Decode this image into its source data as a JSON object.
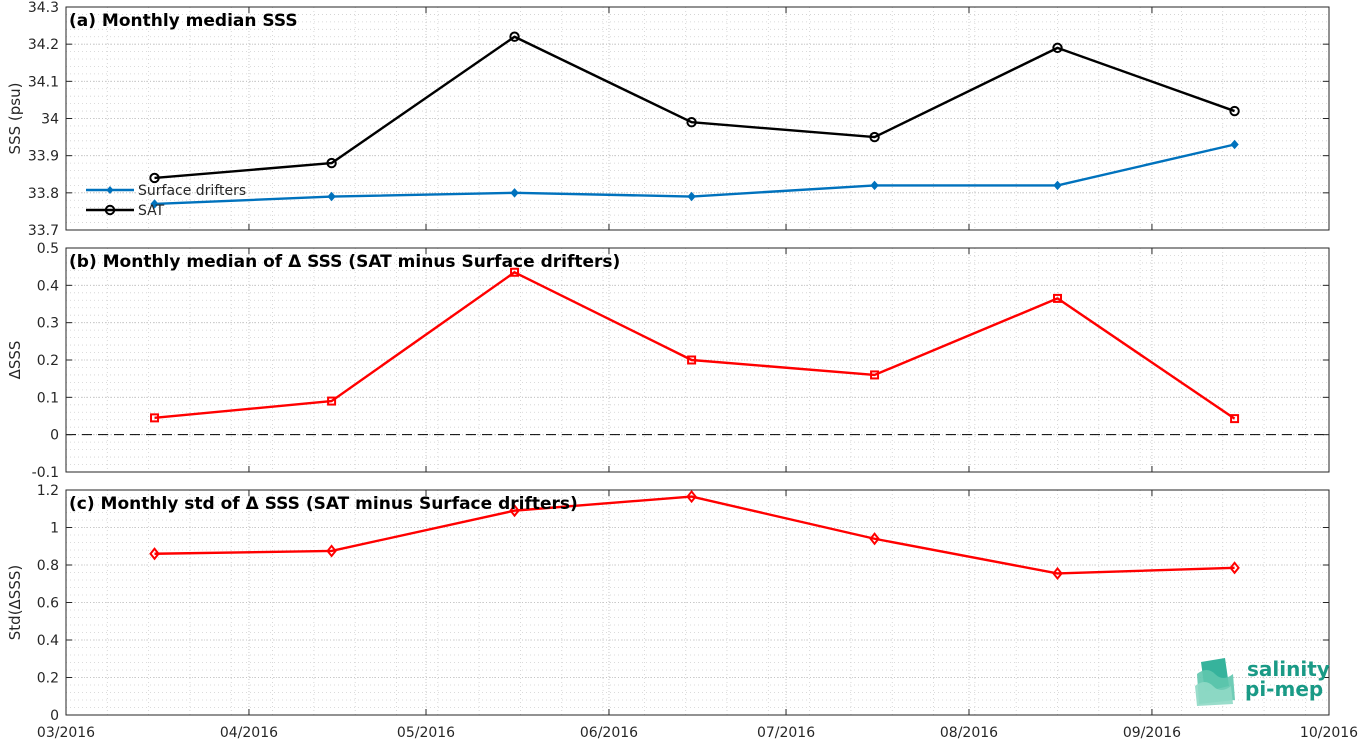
{
  "logo": {
    "line1": "salinity",
    "line2": "pi-mep",
    "color": "#1a9a86"
  },
  "x_axis": {
    "ticks": [
      "03/2016",
      "04/2016",
      "05/2016",
      "06/2016",
      "07/2016",
      "08/2016",
      "09/2016",
      "10/2016"
    ]
  },
  "chart_data": [
    {
      "type": "line",
      "title": "(a) Monthly median SSS",
      "xlabel": "",
      "ylabel": "SSS (psu)",
      "ylim": [
        33.7,
        34.3
      ],
      "yticks": [
        "33.7",
        "33.8",
        "33.9",
        "34",
        "34.1",
        "34.2",
        "34.3"
      ],
      "ytick_values": [
        33.7,
        33.8,
        33.9,
        34.0,
        34.1,
        34.2,
        34.3
      ],
      "xlim": [
        "2016-03-01",
        "2016-10-01"
      ],
      "x": [
        "2016-03-16",
        "2016-04-15",
        "2016-05-16",
        "2016-06-15",
        "2016-07-16",
        "2016-08-16",
        "2016-09-15"
      ],
      "grid": true,
      "legend": "left",
      "series": [
        {
          "name": "Surface drifters",
          "values": [
            33.77,
            33.79,
            33.8,
            33.79,
            33.82,
            33.82,
            33.93
          ],
          "color": "#0072bd",
          "marker": "diamond-filled"
        },
        {
          "name": "SAT",
          "values": [
            33.84,
            33.88,
            34.22,
            33.99,
            33.95,
            34.19,
            34.02
          ],
          "color": "#000000",
          "marker": "circle"
        }
      ]
    },
    {
      "type": "line",
      "title": "(b) Monthly median of Δ SSS (SAT minus Surface drifters)",
      "xlabel": "",
      "ylabel": "ΔSSS",
      "ylim": [
        -0.1,
        0.5
      ],
      "yticks": [
        "-0.1",
        "0",
        "0.1",
        "0.2",
        "0.3",
        "0.4",
        "0.5"
      ],
      "ytick_values": [
        -0.1,
        0,
        0.1,
        0.2,
        0.3,
        0.4,
        0.5
      ],
      "xlim": [
        "2016-03-01",
        "2016-10-01"
      ],
      "x": [
        "2016-03-16",
        "2016-04-15",
        "2016-05-16",
        "2016-06-15",
        "2016-07-16",
        "2016-08-16",
        "2016-09-15"
      ],
      "grid": true,
      "zero_line": true,
      "series": [
        {
          "values": [
            0.045,
            0.09,
            0.435,
            0.2,
            0.16,
            0.365,
            0.043
          ],
          "color": "#ff0000",
          "marker": "square"
        }
      ]
    },
    {
      "type": "line",
      "title": "(c) Monthly std of Δ SSS (SAT minus Surface drifters)",
      "xlabel": "",
      "ylabel": "Std(ΔSSS)",
      "ylim": [
        0,
        1.2
      ],
      "yticks": [
        "0",
        "0.2",
        "0.4",
        "0.6",
        "0.8",
        "1",
        "1.2"
      ],
      "ytick_values": [
        0,
        0.2,
        0.4,
        0.6,
        0.8,
        1.0,
        1.2
      ],
      "xlim": [
        "2016-03-01",
        "2016-10-01"
      ],
      "x": [
        "2016-03-16",
        "2016-04-15",
        "2016-05-16",
        "2016-06-15",
        "2016-07-16",
        "2016-08-16",
        "2016-09-15"
      ],
      "grid": true,
      "series": [
        {
          "values": [
            0.86,
            0.875,
            1.09,
            1.165,
            0.94,
            0.755,
            0.785
          ],
          "color": "#ff0000",
          "marker": "diamond"
        }
      ]
    }
  ]
}
